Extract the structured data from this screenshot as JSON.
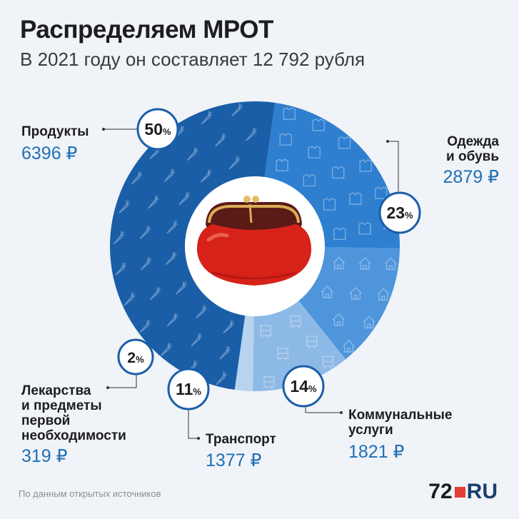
{
  "title": "Распределяем МРОТ",
  "subtitle": "В 2021 году он составляет 12 792 рубля",
  "source": "По данным открытых источников",
  "logo": {
    "number": "72",
    "text": "RU"
  },
  "colors": {
    "products": "#1a5ea8",
    "clothes": "#2f7fd0",
    "utilities": "#4e95dc",
    "transport": "#8db9e6",
    "medicine": "#b7d3ef",
    "amount_text": "#1f6fb8"
  },
  "center_icon": "purse-icon",
  "chart_data": {
    "type": "pie",
    "title": "Распределяем МРОТ",
    "subtitle": "В 2021 году он составляет 12 792 рубля",
    "total": 12792,
    "unit": "₽",
    "slices": [
      {
        "label": "Продукты",
        "label_lines": [
          "Продукты"
        ],
        "percent": 50,
        "percent_text": "50",
        "amount": 6396,
        "amount_text": "6396 ₽",
        "pattern": "carrot-icon"
      },
      {
        "label": "Одежда и обувь",
        "label_lines": [
          "Одежда",
          "и обувь"
        ],
        "percent": 23,
        "percent_text": "23",
        "amount": 2879,
        "amount_text": "2879 ₽",
        "pattern": "shirt-icon"
      },
      {
        "label": "Коммунальные услуги",
        "label_lines": [
          "Коммунальные",
          "услуги"
        ],
        "percent": 14,
        "percent_text": "14",
        "amount": 1821,
        "amount_text": "1821 ₽",
        "pattern": "house-icon"
      },
      {
        "label": "Транспорт",
        "label_lines": [
          "Транспорт"
        ],
        "percent": 11,
        "percent_text": "11",
        "amount": 1377,
        "amount_text": "1377 ₽",
        "pattern": "bus-icon"
      },
      {
        "label": "Лекарства и предметы первой необходимости",
        "label_lines": [
          "Лекарства",
          "и предметы",
          "первой",
          "необходимости"
        ],
        "percent": 2,
        "percent_text": "2",
        "amount": 319,
        "amount_text": "319 ₽",
        "pattern": "first-aid-icon"
      }
    ]
  }
}
